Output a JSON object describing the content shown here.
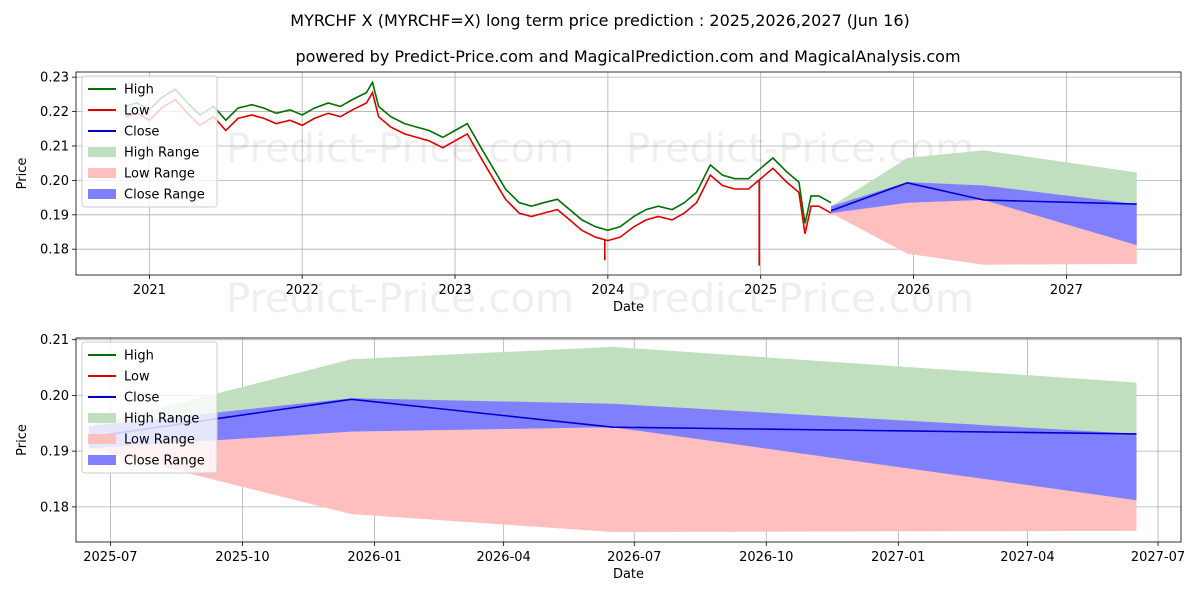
{
  "header": {
    "title": "MYRCHF X (MYRCHF=X) long term price prediction : 2025,2026,2027 (Jun 16)",
    "subtitle": "powered by Predict-Price.com and MagicalPrediction.com and MagicalAnalysis.com"
  },
  "watermark": "Predict-Price.com",
  "legend_labels": [
    "High",
    "Low",
    "Close",
    "High Range",
    "Low Range",
    "Close Range"
  ],
  "colors": {
    "high": "#007000",
    "low": "#e00000",
    "close": "#0000cc",
    "high_range": "#bfdfbf",
    "low_range": "#ffbfbf",
    "close_range": "#8080ff"
  },
  "chart_data": [
    {
      "type": "line",
      "title": "MYRCHF X (MYRCHF=X) long term price prediction : 2025,2026,2027 (Jun 16)",
      "xlabel": "Date",
      "ylabel": "Price",
      "xlim": [
        2020.52,
        2027.75
      ],
      "ylim": [
        0.1725,
        0.2315
      ],
      "x_ticks": [
        2021,
        2022,
        2023,
        2024,
        2025,
        2026,
        2027
      ],
      "x_tick_labels": [
        "2021",
        "2022",
        "2023",
        "2024",
        "2025",
        "2026",
        "2027"
      ],
      "y_ticks": [
        0.18,
        0.19,
        0.2,
        0.21,
        0.22,
        0.23
      ],
      "y_tick_labels": [
        "0.18",
        "0.19",
        "0.20",
        "0.21",
        "0.22",
        "0.23"
      ],
      "history_x": [
        2020.84,
        2020.92,
        2021.0,
        2021.08,
        2021.17,
        2021.25,
        2021.33,
        2021.42,
        2021.5,
        2021.58,
        2021.67,
        2021.75,
        2021.83,
        2021.92,
        2022.0,
        2022.08,
        2022.17,
        2022.25,
        2022.33,
        2022.42,
        2022.46,
        2022.5,
        2022.58,
        2022.67,
        2022.75,
        2022.83,
        2022.92,
        2023.0,
        2023.08,
        2023.17,
        2023.25,
        2023.33,
        2023.42,
        2023.5,
        2023.58,
        2023.67,
        2023.75,
        2023.83,
        2023.92,
        2024.0,
        2024.08,
        2024.17,
        2024.25,
        2024.33,
        2024.42,
        2024.5,
        2024.58,
        2024.67,
        2024.75,
        2024.83,
        2024.92,
        2025.0,
        2025.08,
        2025.17,
        2025.25,
        2025.29,
        2025.33,
        2025.38,
        2025.42,
        2025.46
      ],
      "history_high": [
        0.2215,
        0.2225,
        0.2205,
        0.224,
        0.2265,
        0.2225,
        0.219,
        0.2215,
        0.2175,
        0.221,
        0.222,
        0.221,
        0.2195,
        0.2205,
        0.219,
        0.221,
        0.2225,
        0.2215,
        0.2235,
        0.2255,
        0.2285,
        0.2215,
        0.2185,
        0.2165,
        0.2155,
        0.2145,
        0.2125,
        0.2145,
        0.2165,
        0.2095,
        0.2035,
        0.1975,
        0.1935,
        0.1925,
        0.1935,
        0.1945,
        0.1915,
        0.1885,
        0.1865,
        0.1855,
        0.1865,
        0.1895,
        0.1915,
        0.1925,
        0.1915,
        0.1935,
        0.1965,
        0.2045,
        0.2015,
        0.2005,
        0.2005,
        0.2035,
        0.2065,
        0.2025,
        0.1995,
        0.1875,
        0.1955,
        0.1955,
        0.1945,
        0.1935
      ],
      "history_low": [
        0.2185,
        0.2195,
        0.2175,
        0.221,
        0.2235,
        0.2195,
        0.216,
        0.2185,
        0.2145,
        0.218,
        0.219,
        0.218,
        0.2165,
        0.2175,
        0.216,
        0.218,
        0.2195,
        0.2185,
        0.2205,
        0.2225,
        0.2255,
        0.2185,
        0.2155,
        0.2135,
        0.2125,
        0.2115,
        0.2095,
        0.2115,
        0.2135,
        0.2065,
        0.2005,
        0.1945,
        0.1905,
        0.1895,
        0.1905,
        0.1915,
        0.1885,
        0.1855,
        0.1835,
        0.1825,
        0.1835,
        0.1865,
        0.1885,
        0.1895,
        0.1885,
        0.1905,
        0.1935,
        0.2015,
        0.1985,
        0.1975,
        0.1975,
        0.2005,
        0.2035,
        0.1995,
        0.1965,
        0.1845,
        0.1925,
        0.1925,
        0.1915,
        0.1905
      ],
      "low_spikes": [
        {
          "x": 2023.98,
          "value": 0.1768
        },
        {
          "x": 2024.99,
          "value": 0.1752
        }
      ],
      "forecast_x": [
        2025.46,
        2025.96,
        2026.46,
        2027.46
      ],
      "close": [
        0.1912,
        0.1993,
        0.1943,
        0.1931
      ],
      "high_range": {
        "upper": [
          0.1925,
          0.2065,
          0.2087,
          0.2023
        ],
        "lower": [
          0.1912,
          0.1993,
          0.1943,
          0.1931
        ]
      },
      "low_range": {
        "upper": [
          0.1912,
          0.1935,
          0.1943,
          0.1931
        ],
        "lower": [
          0.1905,
          0.1787,
          0.1755,
          0.1757
        ]
      },
      "close_range": {
        "upper": [
          0.1925,
          0.1995,
          0.1985,
          0.1931
        ],
        "lower": [
          0.1905,
          0.1935,
          0.1943,
          0.1812
        ]
      },
      "legend_position": "upper left"
    },
    {
      "type": "area",
      "xlabel": "Date",
      "ylabel": "Price",
      "xlim": [
        "2025-06-07",
        "2027-07-17"
      ],
      "ylim": [
        0.1737,
        0.2103
      ],
      "x_ticks": [
        "2025-07-01",
        "2025-10-01",
        "2026-01-01",
        "2026-04-01",
        "2026-07-01",
        "2026-10-01",
        "2027-01-01",
        "2027-04-01",
        "2027-07-01"
      ],
      "x_tick_labels": [
        "2025-07",
        "2025-10",
        "2026-01",
        "2026-04",
        "2026-07",
        "2026-10",
        "2027-01",
        "2027-04",
        "2027-07"
      ],
      "y_ticks": [
        0.18,
        0.19,
        0.2,
        0.21
      ],
      "y_tick_labels": [
        "0.18",
        "0.19",
        "0.20",
        "0.21"
      ],
      "forecast_x": [
        "2025-06-16",
        "2025-12-16",
        "2026-06-16",
        "2027-06-16"
      ],
      "close": [
        0.1925,
        0.1993,
        0.1943,
        0.1931
      ],
      "high_range": {
        "upper": [
          0.1945,
          0.2065,
          0.2087,
          0.2023
        ],
        "lower": [
          0.1925,
          0.1993,
          0.1943,
          0.1931
        ]
      },
      "low_range": {
        "upper": [
          0.1925,
          0.1935,
          0.1943,
          0.1931
        ],
        "lower": [
          0.1905,
          0.1787,
          0.1755,
          0.1757
        ]
      },
      "close_range": {
        "upper": [
          0.1945,
          0.1995,
          0.1985,
          0.1931
        ],
        "lower": [
          0.1905,
          0.1935,
          0.1943,
          0.1812
        ]
      },
      "legend_position": "upper left"
    }
  ]
}
